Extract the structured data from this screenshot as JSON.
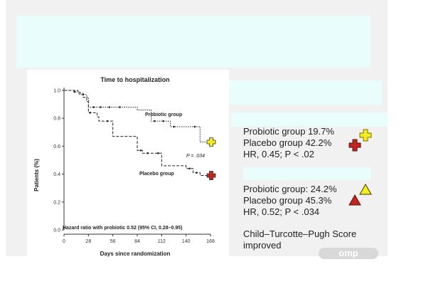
{
  "chart_data": {
    "type": "line",
    "title": "Time to hospitalization",
    "xlabel": "Days since randomization",
    "ylabel": "Patients (%)",
    "x_ticks": [
      "0",
      "28",
      "56",
      "84",
      "112",
      "140",
      "168"
    ],
    "y_ticks": [
      "0.0",
      "0.2",
      "0.4",
      "0.6",
      "0.8",
      "1.0"
    ],
    "xlim": [
      0,
      168
    ],
    "ylim": [
      0,
      1.0
    ],
    "grid": false,
    "series": [
      {
        "name": "Probiotic group",
        "style": "dotted",
        "steps": [
          [
            0,
            1.0
          ],
          [
            12,
            0.99
          ],
          [
            18,
            0.97
          ],
          [
            26,
            0.95
          ],
          [
            28,
            0.88
          ],
          [
            84,
            0.86
          ],
          [
            100,
            0.78
          ],
          [
            122,
            0.74
          ],
          [
            140,
            0.74
          ],
          [
            156,
            0.63
          ],
          [
            168,
            0.63
          ]
        ],
        "censor_x": [
          12,
          22,
          34,
          42,
          52,
          64,
          104,
          114,
          126,
          150
        ]
      },
      {
        "name": "Placebo group",
        "style": "dashed",
        "steps": [
          [
            0,
            1.0
          ],
          [
            16,
            0.98
          ],
          [
            22,
            0.95
          ],
          [
            26,
            0.92
          ],
          [
            28,
            0.84
          ],
          [
            38,
            0.81
          ],
          [
            40,
            0.78
          ],
          [
            56,
            0.67
          ],
          [
            84,
            0.57
          ],
          [
            90,
            0.55
          ],
          [
            112,
            0.46
          ],
          [
            140,
            0.44
          ],
          [
            148,
            0.41
          ],
          [
            156,
            0.39
          ],
          [
            168,
            0.39
          ]
        ],
        "censor_x": [
          30,
          50,
          88,
          96,
          108,
          144,
          152
        ]
      }
    ],
    "annotations": {
      "p_value": "P = .034",
      "hazard_ratio": "Hazard ratio with probiotic 0.52 (95% CI, 0.28–0.95)"
    }
  },
  "results": {
    "group1": {
      "probiotic": "Probiotic group 19.7%",
      "placebo": "Placebo group 42.2%",
      "hr": "HR, 0.45; P < .02",
      "probiotic_marker_color": "#f5ec20",
      "placebo_marker_color": "#c0271e",
      "marker_shape": "cross"
    },
    "group2": {
      "probiotic": "Probiotic group: 24.2%",
      "placebo": "Placebo group 45.3%",
      "hr": "HR, 0.52; P < .034",
      "probiotic_marker_color": "#f5ec20",
      "placebo_marker_color": "#c0271e",
      "marker_shape": "triangle"
    },
    "ctp": "Child–Turcotte–Pugh Score improved"
  },
  "chart_markers": {
    "probiotic_color": "#f5ec20",
    "placebo_color": "#c0271e"
  },
  "watermark": "omp"
}
